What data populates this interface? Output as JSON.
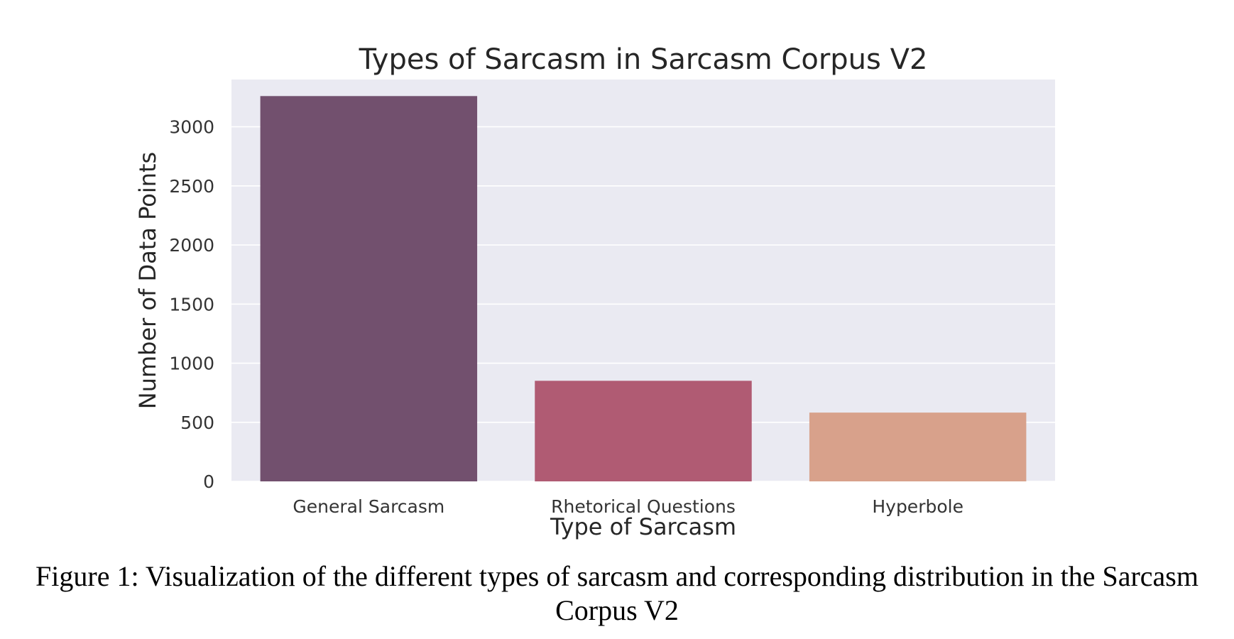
{
  "chart_data": {
    "type": "bar",
    "title": "Types of Sarcasm in Sarcasm Corpus V2",
    "xlabel": "Type of Sarcasm",
    "ylabel": "Number of Data Points",
    "categories": [
      "General Sarcasm",
      "Rhetorical Questions",
      "Hyperbole"
    ],
    "values": [
      3260,
      851,
      582
    ],
    "colors": [
      "#72506e",
      "#b05b73",
      "#d8a18b"
    ],
    "ylim": [
      0,
      3400
    ],
    "yticks": [
      "0",
      "500",
      "1000",
      "1500",
      "2000",
      "2500",
      "3000"
    ],
    "grid": true,
    "legend": "none"
  },
  "caption": "Figure 1: Visualization of the different types of sarcasm and corresponding distribution in the Sarcasm Corpus V2"
}
